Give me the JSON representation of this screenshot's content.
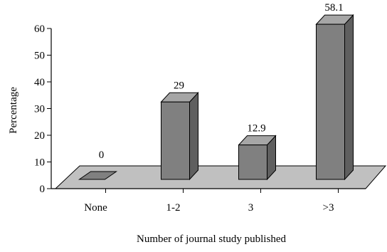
{
  "chart_data": {
    "type": "bar",
    "categories": [
      "None",
      "1-2",
      "3",
      ">3"
    ],
    "values": [
      0,
      29,
      12.9,
      58.1
    ],
    "value_labels": [
      "0",
      "29",
      "12.9",
      "58.1"
    ],
    "ylabel": "Percentage",
    "xlabel": "Number of journal study published",
    "ylim": [
      0,
      60
    ],
    "yticks": [
      0,
      10,
      20,
      30,
      40,
      50,
      60
    ],
    "grid": false,
    "legend": "none",
    "style": "3d",
    "colors": {
      "bar_front": "#808080",
      "bar_side": "#5f5f5f",
      "bar_top": "#a6a6a6",
      "floor": "#c0c0c0",
      "axis": "#000000"
    }
  }
}
